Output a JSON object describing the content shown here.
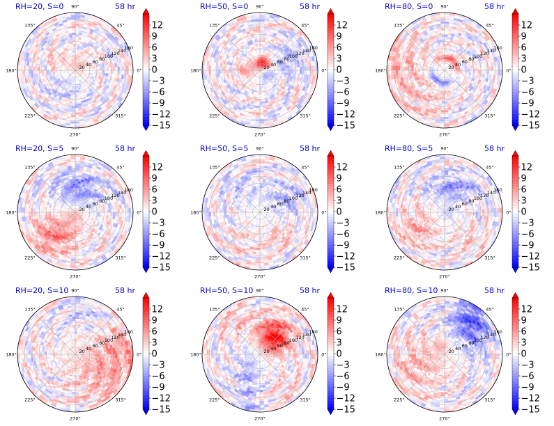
{
  "chart_data": {
    "type": "heatmap",
    "subtype": "polar",
    "time_label": "58 hr",
    "angle_ticks": [
      0,
      45,
      90,
      135,
      180,
      225,
      270,
      315
    ],
    "angle_tick_labels": [
      "0°",
      "45°",
      "90°",
      "135°",
      "180°",
      "225°",
      "270°",
      "315°"
    ],
    "radial_ticks": [
      20,
      40,
      60,
      80,
      100,
      120,
      140,
      160
    ],
    "radial_label_angle_deg": 22.5,
    "colorbar": {
      "colormap": "bwr",
      "range": [
        -15,
        15
      ],
      "extend": "both",
      "ticks": [
        12,
        9,
        6,
        3,
        0,
        -3,
        -6,
        -9,
        -12,
        -15
      ],
      "tick_labels": [
        "12",
        "9",
        "6",
        "3",
        "0",
        "−3",
        "−6",
        "−9",
        "−12",
        "−15"
      ]
    },
    "colors": {
      "min": "#0000ff",
      "mid": "#ffffff",
      "max": "#ff0000",
      "title": "#0000cc"
    },
    "panels": [
      {
        "title": "RH=20, S=0",
        "RH": 20,
        "S": 0,
        "pattern": "mixed weak anomalies, positive near center"
      },
      {
        "title": "RH=50, S=0",
        "RH": 50,
        "S": 0,
        "pattern": "strong positive core near center, mixed ring"
      },
      {
        "title": "RH=80, S=0",
        "RH": 80,
        "S": 0,
        "pattern": "strong positive/negative ring near center, positive to west"
      },
      {
        "title": "RH=20, S=5",
        "RH": 20,
        "S": 5,
        "pattern": "negative north, positive south-west"
      },
      {
        "title": "RH=50, S=5",
        "RH": 50,
        "S": 5,
        "pattern": "weak mixed, negative east, positive south"
      },
      {
        "title": "RH=80, S=5",
        "RH": 80,
        "S": 5,
        "pattern": "negative north, positive south-west"
      },
      {
        "title": "RH=20, S=10",
        "RH": 20,
        "S": 10,
        "pattern": "positive south-east sector"
      },
      {
        "title": "RH=50, S=10",
        "RH": 50,
        "S": 10,
        "pattern": "strong positive north-east core"
      },
      {
        "title": "RH=80, S=10",
        "RH": 80,
        "S": 10,
        "pattern": "negative north-east, positive south-west"
      }
    ]
  }
}
